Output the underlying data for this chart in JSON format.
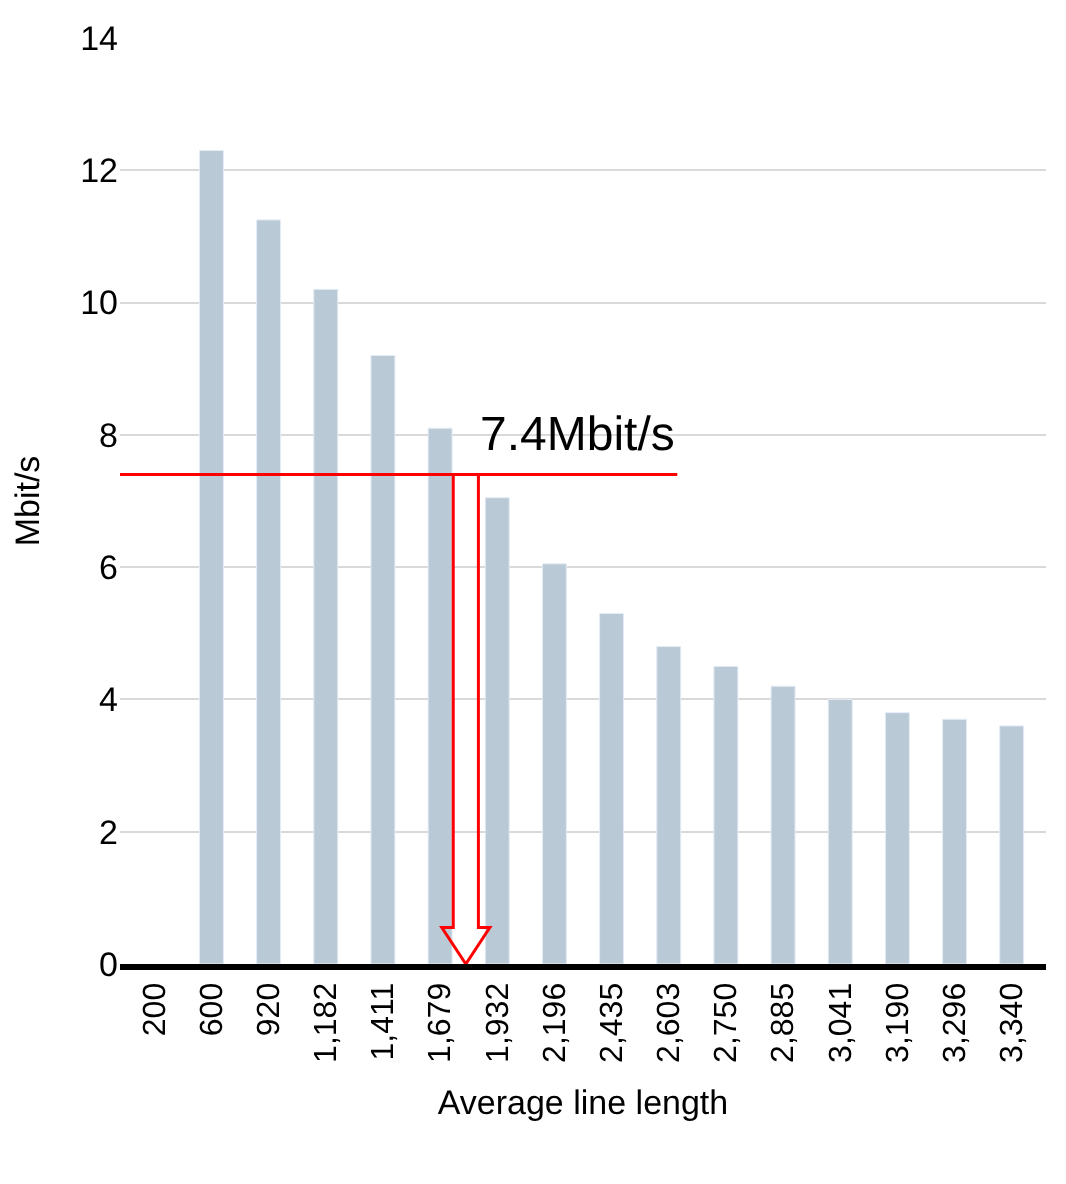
{
  "chart_data": {
    "type": "bar",
    "xlabel": "Average line length",
    "ylabel": "Mbit/s",
    "categories": [
      "200",
      "600",
      "920",
      "1,182",
      "1,411",
      "1,679",
      "1,932",
      "2,196",
      "2,435",
      "2,603",
      "2,750",
      "2,885",
      "3,041",
      "3,190",
      "3,296",
      "3,340"
    ],
    "values": [
      null,
      12.3,
      11.25,
      10.2,
      9.2,
      8.1,
      7.05,
      6.05,
      5.3,
      4.8,
      4.5,
      4.2,
      4.0,
      3.8,
      3.7,
      3.6
    ],
    "color": "#b9cad6",
    "ylim": [
      0,
      14
    ],
    "yticks": [
      0,
      2,
      4,
      6,
      8,
      10,
      12,
      14
    ],
    "grid": "y",
    "legend": false,
    "ref_lines": [
      {
        "axis": "y",
        "value": 7.4,
        "label": "7.4Mbit/s",
        "color": "#ff0000"
      }
    ]
  }
}
